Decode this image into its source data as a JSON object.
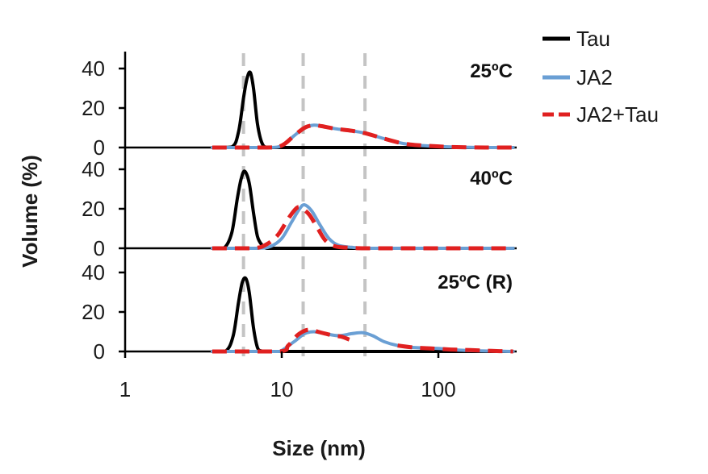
{
  "chart_data": {
    "type": "line",
    "xlabel": "Size (nm)",
    "ylabel": "Volume (%)",
    "xscale": "log",
    "xlim": [
      1,
      300
    ],
    "x_ticks": [
      "1",
      "10",
      "100"
    ],
    "x_tick_values": [
      1,
      10,
      100
    ],
    "ylim": [
      0,
      50
    ],
    "y_ticks": [
      "0",
      "20",
      "40"
    ],
    "y_tick_values": [
      0,
      20,
      40
    ],
    "grid": false,
    "legend_position": "top-right",
    "reference_lines": [
      5.7,
      13.7,
      34
    ],
    "legend": [
      {
        "label": "Tau",
        "color": "#000000",
        "dash": "solid"
      },
      {
        "label": "JA2",
        "color": "#6a9fd4",
        "dash": "solid"
      },
      {
        "label": "JA2+Tau",
        "color": "#e02020",
        "dash": "dashed"
      }
    ],
    "panels": [
      {
        "label": "25ºC",
        "series": [
          {
            "name": "Tau",
            "color": "#000000",
            "dash": "solid",
            "x": [
              3.6,
              4.8,
              5.3,
              5.7,
              6.0,
              6.3,
              6.6,
              7.0,
              7.5,
              8.2,
              10,
              20,
              50,
              100,
              200,
              300
            ],
            "y": [
              0,
              0.3,
              8,
              25,
              35,
              38,
              30,
              12,
              2,
              0,
              0,
              0,
              0,
              0,
              0,
              0
            ]
          },
          {
            "name": "JA2",
            "color": "#6a9fd4",
            "dash": "solid",
            "x": [
              3.6,
              8,
              10,
              12,
              14,
              16,
              18,
              22,
              28,
              35,
              45,
              60,
              80,
              120,
              200,
              300
            ],
            "y": [
              0,
              0,
              1,
              6,
              10,
              11.3,
              10.8,
              9.5,
              8.5,
              7,
              4.5,
              2,
              1,
              0.3,
              0,
              0
            ]
          },
          {
            "name": "JA2+Tau",
            "color": "#e02020",
            "dash": "dashed",
            "x": [
              3.6,
              8,
              10,
              12,
              14,
              16,
              18,
              22,
              28,
              35,
              45,
              60,
              80,
              120,
              200,
              300
            ],
            "y": [
              0,
              0,
              1,
              6,
              10,
              11.3,
              10.8,
              9.5,
              8.5,
              7,
              4.5,
              2,
              1,
              0.3,
              0,
              0
            ]
          }
        ]
      },
      {
        "label": "40ºC",
        "series": [
          {
            "name": "Tau",
            "color": "#000000",
            "dash": "solid",
            "x": [
              3.6,
              4.3,
              4.8,
              5.2,
              5.5,
              5.8,
              6.2,
              6.6,
              7.0,
              7.5,
              8.0,
              10,
              20,
              50,
              100,
              300
            ],
            "y": [
              0,
              0.3,
              8,
              25,
              35,
              39,
              33,
              18,
              6,
              1.5,
              0,
              0,
              0,
              0,
              0,
              0
            ]
          },
          {
            "name": "JA2",
            "color": "#6a9fd4",
            "dash": "solid",
            "x": [
              3.6,
              7,
              8.5,
              10,
              11.5,
              13,
              14,
              15.5,
              17.5,
              20,
              23,
              28,
              35,
              60,
              100,
              300
            ],
            "y": [
              0,
              0,
              1,
              5,
              13,
              20,
              22,
              19,
              12,
              5,
              1.5,
              0.5,
              0,
              0,
              0,
              0
            ]
          },
          {
            "name": "JA2+Tau",
            "color": "#e02020",
            "dash": "dashed",
            "x": [
              3.6,
              6.5,
              8,
              9.5,
              11,
              12.5,
              13.5,
              15,
              17,
              19,
              22,
              27,
              34,
              60,
              100,
              300
            ],
            "y": [
              0,
              0,
              2,
              7,
              15,
              20.5,
              20,
              17,
              10,
              4,
              1,
              0.3,
              0,
              0,
              0,
              0
            ]
          }
        ]
      },
      {
        "label": "25ºC (R)",
        "series": [
          {
            "name": "Tau",
            "color": "#000000",
            "dash": "solid",
            "x": [
              3.6,
              4.4,
              4.9,
              5.3,
              5.6,
              5.9,
              6.2,
              6.6,
              7.0,
              7.4,
              8.0,
              10,
              20,
              50,
              100,
              300
            ],
            "y": [
              0,
              0.3,
              8,
              25,
              35,
              37,
              30,
              12,
              2,
              0.3,
              0,
              0,
              0,
              0,
              0,
              0
            ]
          },
          {
            "name": "JA2",
            "color": "#6a9fd4",
            "dash": "solid",
            "x": [
              3.6,
              9,
              10,
              12,
              14,
              16,
              19,
              23,
              28,
              33,
              38,
              45,
              55,
              70,
              100,
              150,
              300
            ],
            "y": [
              0,
              0,
              0.5,
              5,
              9,
              10,
              9,
              8,
              9,
              9.5,
              8,
              5,
              3,
              2,
              1.5,
              0.5,
              0
            ]
          },
          {
            "name": "JA2+Tau",
            "color": "#e02020",
            "dash": "dashed",
            "x": [
              3.6,
              9.5,
              11,
              12.5,
              14,
              15.5,
              17,
              19,
              21.5,
              24,
              27
            ],
            "y": [
              0,
              0,
              3,
              8,
              10.5,
              11,
              10,
              9,
              8,
              7.5,
              6
            ]
          },
          {
            "name": "JA2+Tau",
            "color": "#e02020",
            "dash": "dashed",
            "x": [
              55,
              70,
              90,
              120,
              160,
              220,
              300
            ],
            "y": [
              3,
              2,
              1.5,
              1,
              0.7,
              0.3,
              0
            ]
          }
        ]
      }
    ]
  }
}
